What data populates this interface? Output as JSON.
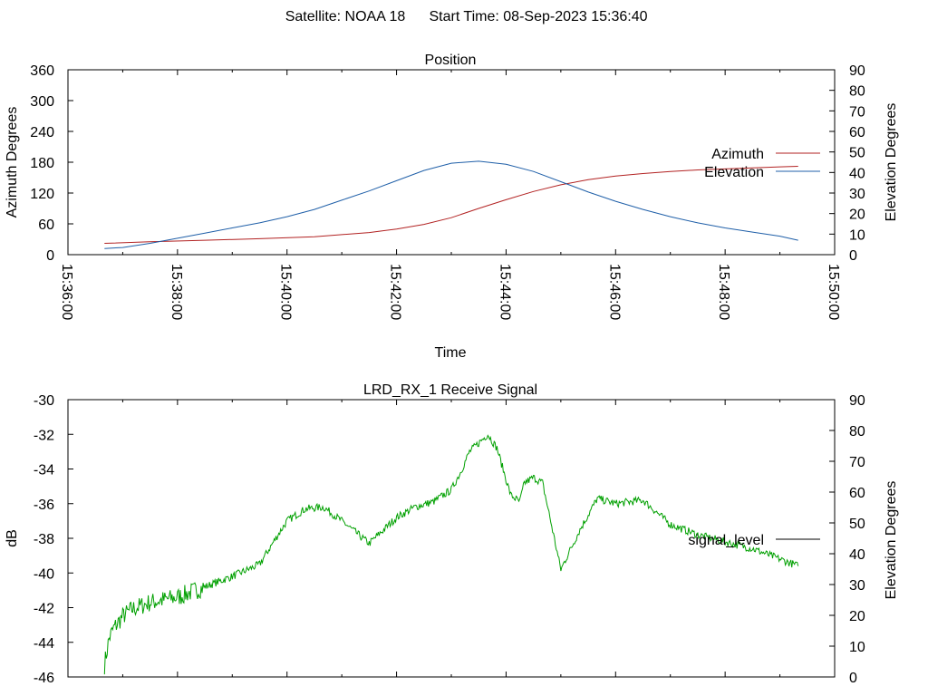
{
  "header": {
    "satellite": "Satellite: NOAA 18",
    "start_time": "Start Time: 08-Sep-2023 15:36:40"
  },
  "colors": {
    "azimuth": "#b22222",
    "elevation": "#1f5fa8",
    "signal": "#00a000",
    "legend_line": "#000000"
  },
  "chart_data": [
    {
      "type": "line",
      "title": "Position",
      "xlabel": "Time",
      "ylabel": "Azimuth Degrees",
      "y2label": "Elevation Degrees",
      "xlim": [
        "15:36:00",
        "15:50:00"
      ],
      "x_ticks": [
        "15:36:00",
        "15:38:00",
        "15:40:00",
        "15:42:00",
        "15:44:00",
        "15:46:00",
        "15:48:00",
        "15:50:00"
      ],
      "ylim": [
        0,
        360
      ],
      "y_ticks": [
        "0",
        "60",
        "120",
        "180",
        "240",
        "300",
        "360"
      ],
      "y2lim": [
        0,
        90
      ],
      "y2_ticks": [
        "0",
        "10",
        "20",
        "30",
        "40",
        "50",
        "60",
        "70",
        "80",
        "90"
      ],
      "legend_position": "right",
      "series": [
        {
          "name": "Azimuth",
          "axis": "y",
          "x": [
            "15:36:40",
            "15:37:30",
            "15:38:30",
            "15:39:30",
            "15:40:30",
            "15:41:30",
            "15:42:00",
            "15:42:30",
            "15:43:00",
            "15:43:30",
            "15:44:00",
            "15:44:30",
            "15:45:00",
            "15:45:30",
            "15:46:00",
            "15:46:30",
            "15:47:00",
            "15:47:30",
            "15:48:00",
            "15:48:30",
            "15:49:00",
            "15:49:20"
          ],
          "values": [
            22,
            25,
            28,
            31,
            35,
            43,
            50,
            59,
            72,
            90,
            107,
            123,
            136,
            146,
            153,
            158,
            162,
            165,
            167,
            169,
            171,
            172
          ]
        },
        {
          "name": "Elevation",
          "axis": "y2",
          "x": [
            "15:36:40",
            "15:37:00",
            "15:37:30",
            "15:38:00",
            "15:38:30",
            "15:39:00",
            "15:39:30",
            "15:40:00",
            "15:40:30",
            "15:41:00",
            "15:41:30",
            "15:42:00",
            "15:42:30",
            "15:43:00",
            "15:43:30",
            "15:44:00",
            "15:44:30",
            "15:45:00",
            "15:45:30",
            "15:46:00",
            "15:46:30",
            "15:47:00",
            "15:47:30",
            "15:48:00",
            "15:48:30",
            "15:49:00",
            "15:49:20"
          ],
          "values": [
            3,
            3.5,
            5.5,
            8,
            10.5,
            13,
            15.5,
            18.5,
            22,
            26.5,
            31,
            36,
            41,
            44.5,
            45.5,
            44,
            40.5,
            35.5,
            30.5,
            26,
            22,
            18.5,
            15.5,
            13,
            11,
            9,
            7
          ]
        }
      ]
    },
    {
      "type": "line",
      "title": "LRD_RX_1 Receive Signal",
      "ylabel": "dB",
      "y2label": "Elevation Degrees",
      "xlim": [
        "15:36:00",
        "15:50:00"
      ],
      "ylim": [
        -46,
        -30
      ],
      "y_ticks": [
        "-46",
        "-44",
        "-42",
        "-40",
        "-38",
        "-36",
        "-34",
        "-32",
        "-30"
      ],
      "y2lim": [
        0,
        90
      ],
      "y2_ticks": [
        "0",
        "10",
        "20",
        "30",
        "40",
        "50",
        "60",
        "70",
        "80",
        "90"
      ],
      "legend_position": "right",
      "series": [
        {
          "name": "signal_level",
          "axis": "y",
          "x": [
            "15:36:40",
            "15:36:45",
            "15:36:50",
            "15:37:00",
            "15:37:10",
            "15:37:30",
            "15:38:00",
            "15:38:30",
            "15:39:00",
            "15:39:30",
            "15:39:50",
            "15:40:00",
            "15:40:20",
            "15:40:40",
            "15:41:00",
            "15:41:30",
            "15:42:00",
            "15:42:20",
            "15:42:40",
            "15:43:00",
            "15:43:10",
            "15:43:20",
            "15:43:40",
            "15:43:50",
            "15:44:05",
            "15:44:15",
            "15:44:20",
            "15:44:30",
            "15:44:40",
            "15:45:00",
            "15:45:20",
            "15:45:40",
            "15:46:00",
            "15:46:30",
            "15:47:00",
            "15:47:30",
            "15:48:00",
            "15:48:30",
            "15:49:00",
            "15:49:20"
          ],
          "values": [
            -45.3,
            -43.8,
            -43.2,
            -42.5,
            -42.1,
            -41.7,
            -41.4,
            -40.8,
            -40.2,
            -39.5,
            -37.8,
            -37,
            -36.3,
            -36.2,
            -37,
            -38.3,
            -36.8,
            -36.2,
            -35.9,
            -35.2,
            -34.2,
            -33,
            -32,
            -32.8,
            -35.5,
            -35.9,
            -34.8,
            -34.5,
            -34.8,
            -39.8,
            -37.6,
            -35.7,
            -36,
            -35.8,
            -37.2,
            -37.8,
            -38.2,
            -38.6,
            -39.2,
            -39.6
          ]
        }
      ]
    }
  ]
}
